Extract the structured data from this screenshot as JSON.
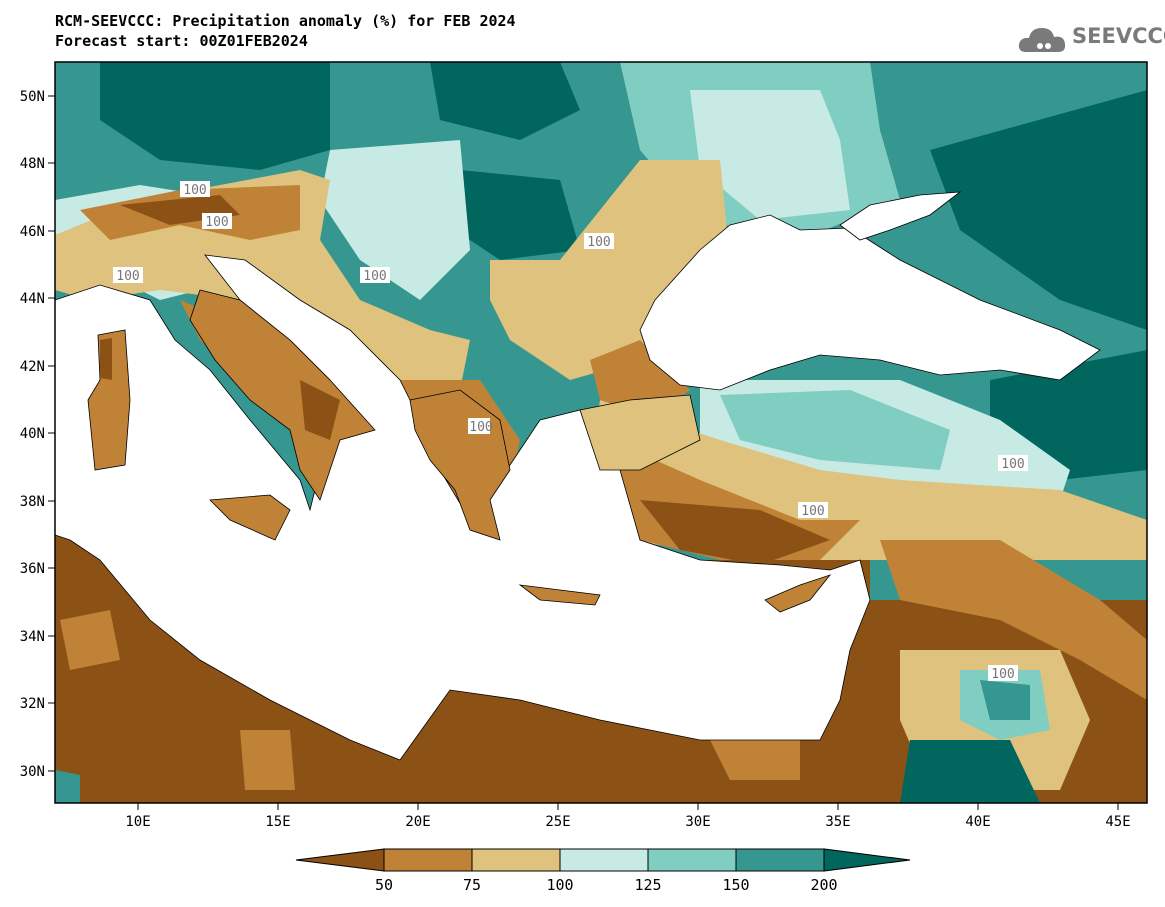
{
  "header": {
    "title_line1": "RCM-SEEVCCC: Precipitation anomaly (%) for FEB 2024",
    "title_line2": "Forecast start: 00Z01FEB2024"
  },
  "logo": {
    "text": "SEEVCCC",
    "icon": "cloud-icon"
  },
  "map": {
    "lon_ticks": [
      "10E",
      "15E",
      "20E",
      "25E",
      "30E",
      "35E",
      "40E",
      "45E"
    ],
    "lat_ticks": [
      "50N",
      "48N",
      "46N",
      "44N",
      "42N",
      "40N",
      "38N",
      "36N",
      "34N",
      "32N",
      "30N"
    ],
    "contour_label": "100"
  },
  "legend": {
    "ticks": [
      "50",
      "75",
      "100",
      "125",
      "150",
      "200"
    ],
    "colors": [
      "#8c5215",
      "#bf8236",
      "#dfc27d",
      "#c7eae5",
      "#80cdc1",
      "#35978f",
      "#01665e"
    ]
  }
}
